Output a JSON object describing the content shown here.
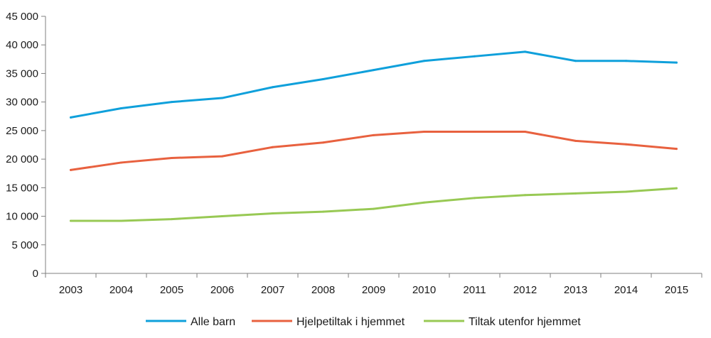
{
  "chart_data": {
    "type": "line",
    "x": [
      "2003",
      "2004",
      "2005",
      "2006",
      "2007",
      "2008",
      "2009",
      "2010",
      "2011",
      "2012",
      "2013",
      "2014",
      "2015"
    ],
    "ylim": [
      0,
      45000
    ],
    "yticks": [
      0,
      5000,
      10000,
      15000,
      20000,
      25000,
      30000,
      35000,
      40000,
      45000
    ],
    "ytick_labels": [
      "0",
      "5 000",
      "10 000",
      "15 000",
      "20 000",
      "25 000",
      "30 000",
      "35 000",
      "40 000",
      "45 000"
    ],
    "grid": false,
    "legend_position": "bottom",
    "series": [
      {
        "name": "Alle barn",
        "color": "#0fa0db",
        "values": [
          27300,
          28900,
          30000,
          30700,
          32600,
          34000,
          35600,
          37200,
          38000,
          38800,
          37200,
          37200,
          36900
        ]
      },
      {
        "name": "Hjelpetiltak i hjemmet",
        "color": "#e8613f",
        "values": [
          18100,
          19400,
          20200,
          20500,
          22100,
          22900,
          24200,
          24800,
          24800,
          24800,
          23200,
          22600,
          21800
        ]
      },
      {
        "name": "Tiltak utenfor hjemmet",
        "color": "#98c954",
        "values": [
          9200,
          9200,
          9500,
          10000,
          10500,
          10800,
          11300,
          12400,
          13200,
          13700,
          14000,
          14300,
          14900
        ]
      }
    ]
  }
}
